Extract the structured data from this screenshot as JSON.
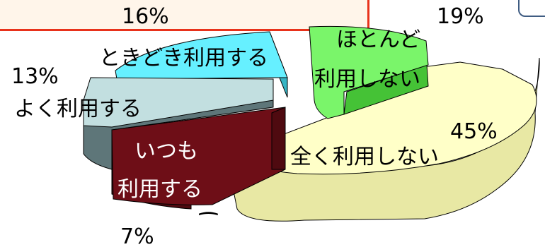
{
  "chart_data": {
    "type": "pie",
    "title": "",
    "slices": [
      {
        "label": "いつも利用する",
        "value": 7,
        "pct_text": "7%",
        "top": "#6e0e17",
        "side": "#4f0a10",
        "label_lines": [
          "いつも",
          "利用する"
        ]
      },
      {
        "label": "よく利用する",
        "value": 13,
        "pct_text": "13%",
        "top": "#c2dfe0",
        "side": "#5e7679",
        "label_lines": [
          "よく利用する"
        ]
      },
      {
        "label": "ときどき利用する",
        "value": 16,
        "pct_text": "16%",
        "top": "#66f0ff",
        "side": "#36b4c4",
        "label_lines": [
          "ときどき利用する"
        ]
      },
      {
        "label": "ほとんど利用しない",
        "value": 19,
        "pct_text": "19%",
        "top": "#7af56a",
        "side": "#45c236",
        "label_lines": [
          "ほとんど",
          "利用しない"
        ]
      },
      {
        "label": "全く利用しない",
        "value": 45,
        "pct_text": "45%",
        "top": "#ffffc8",
        "side": "#e8e8a4",
        "label_lines": [
          "全く利用しない"
        ]
      }
    ]
  }
}
